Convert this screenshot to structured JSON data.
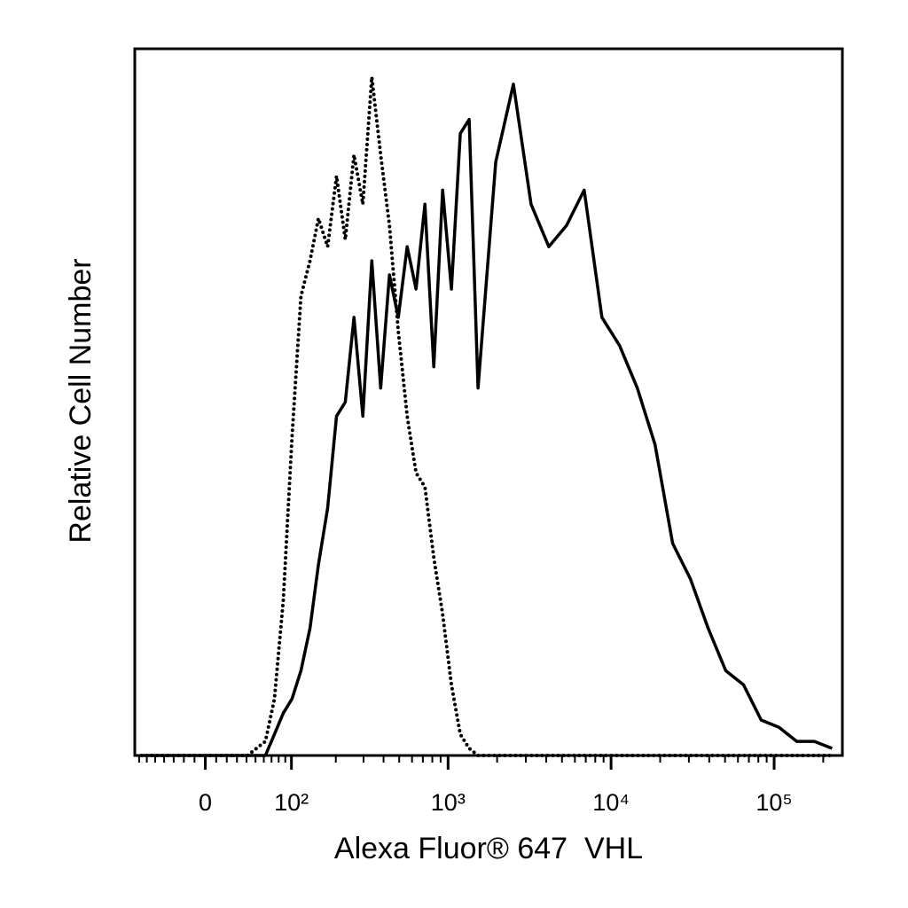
{
  "chart_data": {
    "type": "line",
    "xlabel": "Alexa Fluor® 647  VHL",
    "ylabel": "Relative Cell Number",
    "xscale": "biexponential",
    "xlim": [
      -76,
      262144
    ],
    "ylim": [
      0,
      100
    ],
    "xticks": [
      {
        "value": 0,
        "label": "0"
      },
      {
        "value": 100,
        "label": "10²"
      },
      {
        "value": 1000,
        "label": "10³"
      },
      {
        "value": 10000,
        "label": "10⁴"
      },
      {
        "value": 100000,
        "label": "10⁵"
      }
    ],
    "xminorticks": [
      -70,
      -60,
      -50,
      -40,
      -30,
      -20,
      -10,
      10,
      20,
      30,
      40,
      50,
      60,
      70,
      80,
      90,
      200,
      300,
      400,
      500,
      600,
      700,
      800,
      900,
      2000,
      3000,
      4000,
      5000,
      6000,
      7000,
      8000,
      9000,
      20000,
      30000,
      40000,
      50000,
      60000,
      70000,
      80000,
      90000,
      200000
    ],
    "x": [
      -67,
      -27,
      15,
      41,
      62,
      74,
      87,
      101,
      117,
      135,
      154,
      177,
      202,
      230,
      261,
      297,
      338,
      384,
      435,
      494,
      560,
      635,
      720,
      817,
      926,
      1049,
      1189,
      1347,
      1527,
      1962,
      2518,
      3232,
      4150,
      5330,
      6840,
      8790,
      11280,
      14490,
      18600,
      23870,
      30650,
      39360,
      50540,
      64900,
      83390,
      107000,
      137500,
      176500,
      226700
    ],
    "series": [
      {
        "color": "#000000",
        "line_style": "solid",
        "values": [
          0,
          0,
          0,
          0,
          0,
          3,
          6,
          8,
          12,
          18,
          27,
          35,
          48,
          50,
          62,
          48,
          70,
          52,
          68,
          62,
          72,
          66,
          78,
          55,
          80,
          66,
          88,
          90,
          52,
          84,
          95,
          78,
          72,
          75,
          80,
          62,
          58,
          52,
          44,
          30,
          25,
          18,
          12,
          10,
          5,
          4,
          2,
          2,
          1
        ]
      },
      {
        "color": "#000000",
        "line_style": "dotted",
        "values": [
          0,
          0,
          0,
          0,
          2,
          8,
          22,
          45,
          65,
          70,
          76,
          72,
          82,
          73,
          85,
          78,
          96,
          85,
          75,
          60,
          48,
          40,
          38,
          28,
          20,
          10,
          3,
          1,
          0,
          0,
          0,
          0,
          0,
          0,
          0,
          0,
          0,
          0,
          0,
          0,
          0,
          0,
          0,
          0,
          0,
          0,
          0,
          0,
          0
        ]
      }
    ]
  }
}
